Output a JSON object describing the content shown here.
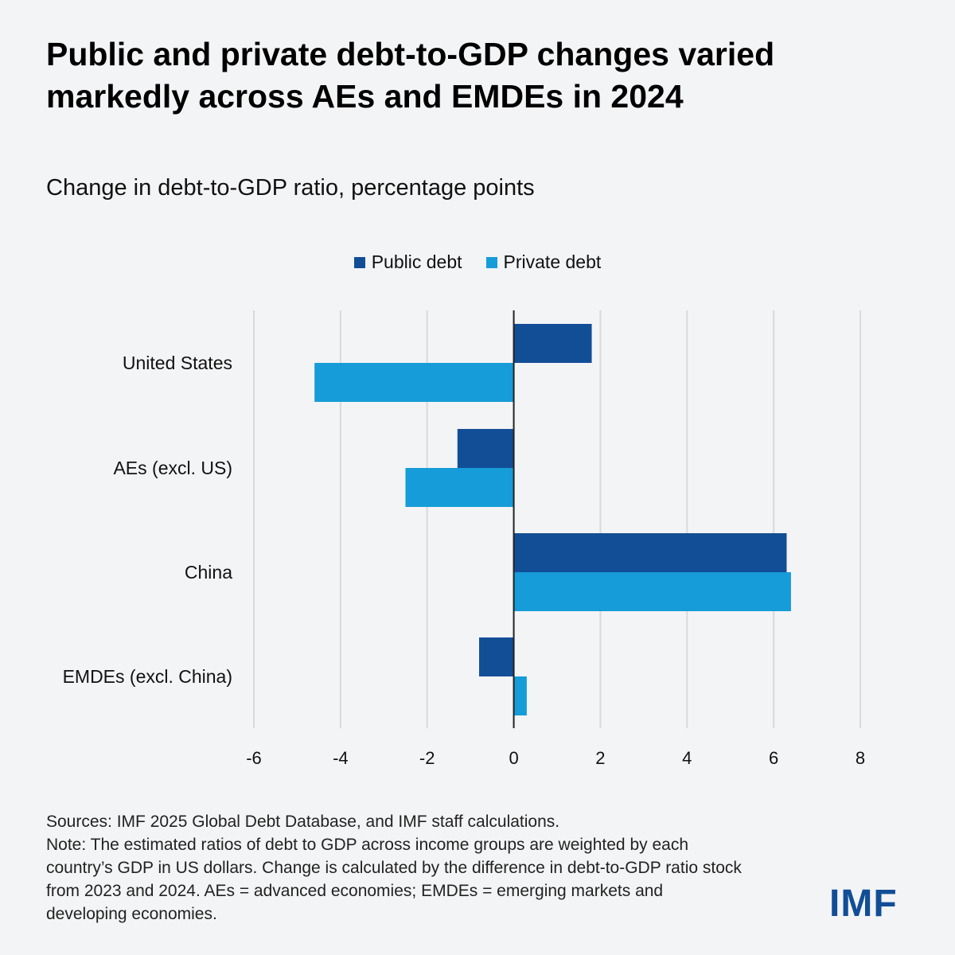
{
  "title": "Public and private debt-to-GDP changes varied markedly across AEs and EMDEs in 2024",
  "subtitle": "Change in debt-to-GDP ratio, percentage points",
  "chart_data": {
    "type": "bar",
    "orientation": "horizontal",
    "categories": [
      "United States",
      "AEs (excl. US)",
      "China",
      "EMDEs (excl. China)"
    ],
    "series": [
      {
        "name": "Public debt",
        "color": "#124E96",
        "values": [
          1.8,
          -1.3,
          6.3,
          -0.8
        ]
      },
      {
        "name": "Private debt",
        "color": "#169CD8",
        "values": [
          -4.6,
          -2.5,
          6.4,
          0.3
        ]
      }
    ],
    "xlim": [
      -6,
      8
    ],
    "xticks": [
      "-6",
      "-4",
      "-2",
      "0",
      "2",
      "4",
      "6",
      "8"
    ],
    "grid": true,
    "legend": "top-center"
  },
  "footer": {
    "sources": "Sources: IMF 2025 Global Debt Database, and IMF staff calculations.",
    "note": "Note: The estimated ratios of debt to GDP across income groups are weighted by each country’s GDP in US dollars. Change is calculated by the difference in debt-to-GDP ratio stock from 2023 and 2024. AEs = advanced economies; EMDEs = emerging markets and developing economies."
  },
  "logo": "IMF"
}
